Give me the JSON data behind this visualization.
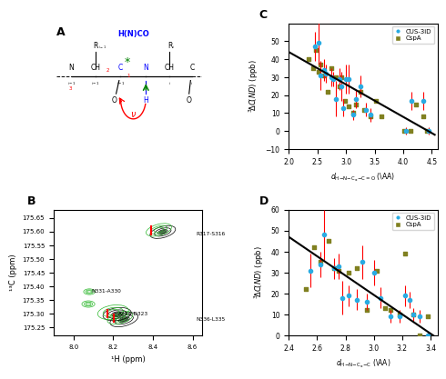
{
  "panel_C": {
    "xlim": [
      2.0,
      4.6
    ],
    "ylim": [
      -10,
      60
    ],
    "xticks": [
      2.0,
      2.5,
      3.0,
      3.5,
      4.0,
      4.5
    ],
    "yticks": [
      -10,
      0,
      10,
      20,
      30,
      40,
      50
    ],
    "fit_x": [
      2.0,
      4.55
    ],
    "fit_y": [
      44.0,
      -2.0
    ],
    "cus3d_x": [
      2.45,
      2.52,
      2.55,
      2.62,
      2.65,
      2.75,
      2.78,
      2.82,
      2.88,
      2.92,
      2.95,
      3.0,
      3.05,
      3.12,
      3.18,
      3.25,
      3.35,
      3.42,
      4.05,
      4.15,
      4.35,
      4.45
    ],
    "cus3d_y": [
      47,
      49,
      31,
      34,
      32,
      30,
      29,
      18,
      29,
      25,
      13,
      29,
      29,
      9,
      18,
      25,
      12,
      9,
      0,
      17,
      17,
      0
    ],
    "cus3d_yerr": [
      8,
      12,
      8,
      6,
      5,
      5,
      4,
      10,
      6,
      8,
      5,
      8,
      8,
      3,
      5,
      6,
      4,
      4,
      2,
      5,
      5,
      2
    ],
    "cspa_x": [
      2.35,
      2.42,
      2.48,
      2.52,
      2.55,
      2.62,
      2.68,
      2.75,
      2.82,
      2.88,
      2.92,
      2.98,
      3.05,
      3.12,
      3.18,
      3.25,
      3.32,
      3.42,
      3.52,
      3.62,
      4.02,
      4.12,
      4.22,
      4.35,
      4.42
    ],
    "cspa_y": [
      40,
      35,
      45,
      33,
      37,
      31,
      22,
      35,
      30,
      25,
      30,
      17,
      14,
      10,
      15,
      22,
      12,
      8,
      17,
      8,
      0,
      0,
      15,
      8,
      0
    ],
    "cus3d_color": "#29ABE2",
    "cspa_color": "#808020"
  },
  "panel_D": {
    "xlim": [
      2.4,
      3.45
    ],
    "ylim": [
      0,
      60
    ],
    "xticks": [
      2.4,
      2.6,
      2.8,
      3.0,
      3.2,
      3.4
    ],
    "yticks": [
      0,
      10,
      20,
      30,
      40,
      50,
      60
    ],
    "fit_x": [
      2.4,
      3.42
    ],
    "fit_y": [
      47.0,
      0.0
    ],
    "cus3d_x": [
      2.55,
      2.62,
      2.65,
      2.72,
      2.75,
      2.78,
      2.82,
      2.88,
      2.92,
      2.95,
      3.0,
      3.05,
      3.12,
      3.18,
      3.22,
      3.25,
      3.28,
      3.32,
      3.38
    ],
    "cus3d_y": [
      31,
      34,
      48,
      32,
      33,
      18,
      19,
      17,
      35,
      16,
      30,
      18,
      9,
      9,
      19,
      17,
      10,
      9,
      0
    ],
    "cus3d_yerr": [
      8,
      6,
      12,
      5,
      6,
      8,
      5,
      5,
      8,
      4,
      6,
      5,
      3,
      3,
      5,
      4,
      3,
      3,
      2
    ],
    "cspa_x": [
      2.52,
      2.58,
      2.62,
      2.68,
      2.72,
      2.75,
      2.82,
      2.88,
      2.95,
      3.02,
      3.08,
      3.12,
      3.18,
      3.22,
      3.28,
      3.32,
      3.38
    ],
    "cspa_y": [
      22,
      42,
      35,
      45,
      32,
      31,
      30,
      32,
      12,
      31,
      13,
      12,
      10,
      39,
      10,
      0,
      9
    ],
    "cus3d_color": "#29ABE2",
    "cspa_color": "#808020"
  },
  "panel_B": {
    "xlabel": "¹H (ppm)",
    "ylabel": "¹³C (ppm)",
    "xlim": [
      8.65,
      7.9
    ],
    "ylim": [
      175.68,
      175.22
    ],
    "yticks": [
      175.25,
      175.3,
      175.35,
      175.4,
      175.45,
      175.5,
      175.55,
      175.6,
      175.65
    ],
    "xticks": [
      8.6,
      8.4,
      8.2,
      8.0
    ]
  }
}
